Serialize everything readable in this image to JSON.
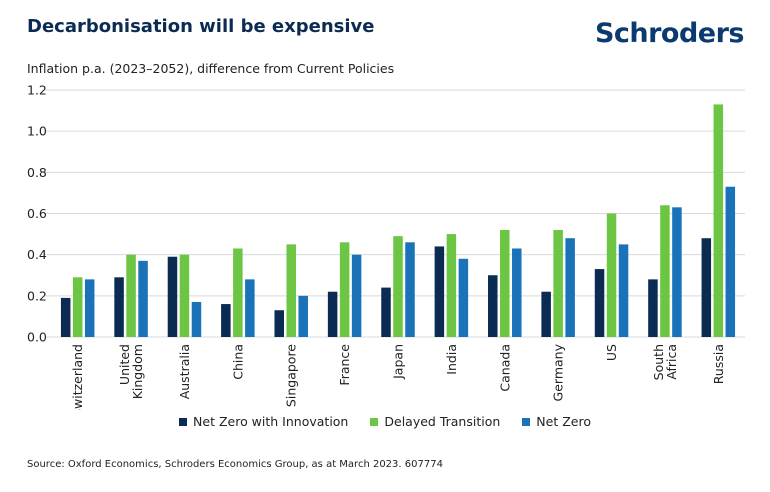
{
  "header": {
    "title": "Decarbonisation will be expensive",
    "brand": "Schroders",
    "subtitle": "Inflation p.a. (2023–2052), difference from Current Policies"
  },
  "footer": {
    "source": "Source: Oxford Economics, Schroders Economics Group, as at March 2023. 607774"
  },
  "colors": {
    "net_zero_innovation": "#0b2b52",
    "delayed_transition": "#6cc644",
    "net_zero": "#1a73b8",
    "grid": "#d9d9d9"
  },
  "chart_data": {
    "type": "bar",
    "categories": [
      "Switzerland",
      "United Kingdom",
      "Australia",
      "China",
      "Singapore",
      "France",
      "Japan",
      "India",
      "Canada",
      "Germany",
      "US",
      "South Africa",
      "Russia"
    ],
    "category_lines": [
      [
        "Switzerland"
      ],
      [
        "United",
        "Kingdom"
      ],
      [
        "Australia"
      ],
      [
        "China"
      ],
      [
        "Singapore"
      ],
      [
        "France"
      ],
      [
        "Japan"
      ],
      [
        "India"
      ],
      [
        "Canada"
      ],
      [
        "Germany"
      ],
      [
        "US"
      ],
      [
        "South",
        "Africa"
      ],
      [
        "Russia"
      ]
    ],
    "series": [
      {
        "name": "Net Zero with Innovation",
        "color": "#0b2b52",
        "values": [
          0.19,
          0.29,
          0.39,
          0.16,
          0.13,
          0.22,
          0.24,
          0.44,
          0.3,
          0.22,
          0.33,
          0.28,
          0.48
        ]
      },
      {
        "name": "Delayed Transition",
        "color": "#6cc644",
        "values": [
          0.29,
          0.4,
          0.4,
          0.43,
          0.45,
          0.46,
          0.49,
          0.5,
          0.52,
          0.52,
          0.6,
          0.64,
          1.13
        ]
      },
      {
        "name": "Net Zero",
        "color": "#1a73b8",
        "values": [
          0.28,
          0.37,
          0.17,
          0.28,
          0.2,
          0.4,
          0.46,
          0.38,
          0.43,
          0.48,
          0.45,
          0.63,
          0.73
        ]
      }
    ],
    "ylim": [
      0,
      1.2
    ],
    "yticks": [
      0.0,
      0.2,
      0.4,
      0.6,
      0.8,
      1.0,
      1.2
    ],
    "ytick_labels": [
      "0.0",
      "0.2",
      "0.4",
      "0.6",
      "0.8",
      "1.0",
      "1.2"
    ],
    "grid": true,
    "legend_position": "bottom-center"
  }
}
